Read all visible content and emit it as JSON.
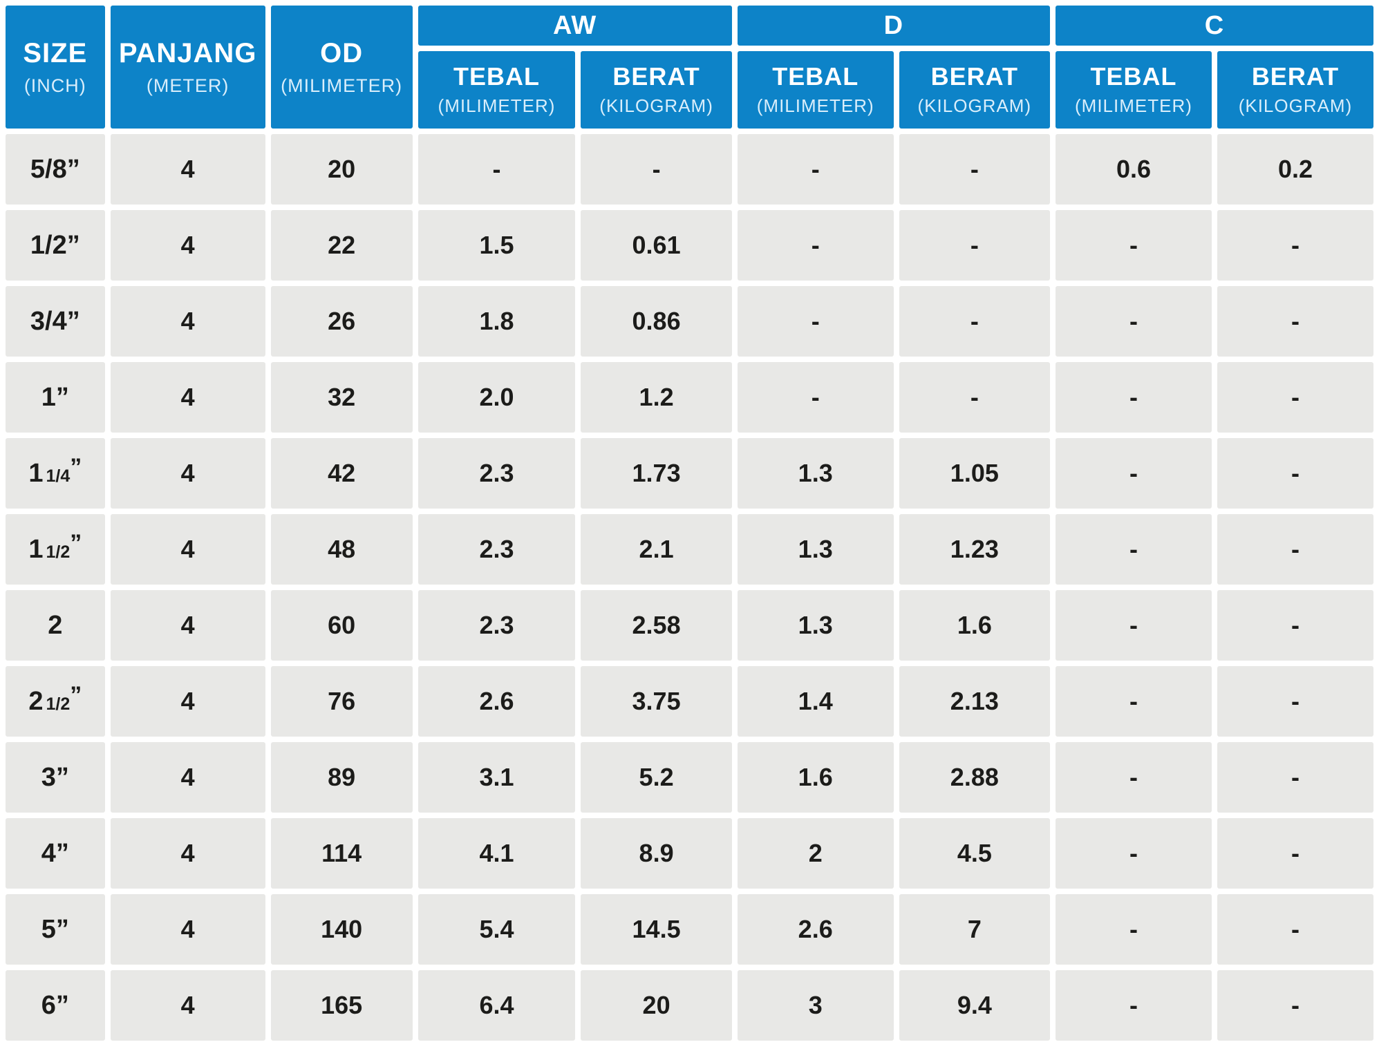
{
  "colors": {
    "header_bg": "#0d83c8",
    "cell_bg": "#e8e8e6",
    "header_text": "#ffffff",
    "header_subtext": "#d9eefb",
    "cell_text": "#1c1c1a",
    "gap": "#ffffff"
  },
  "chart_data": {
    "type": "table",
    "empty_marker": "-",
    "header": {
      "size": {
        "label": "SIZE",
        "unit": "(INCH)"
      },
      "panjang": {
        "label": "PANJANG",
        "unit": "(METER)"
      },
      "od": {
        "label": "OD",
        "unit": "(MILIMETER)"
      },
      "groups": [
        {
          "label": "AW",
          "cols": [
            {
              "label": "TEBAL",
              "unit": "(MILIMETER)"
            },
            {
              "label": "BERAT",
              "unit": "(KILOGRAM)"
            }
          ]
        },
        {
          "label": "D",
          "cols": [
            {
              "label": "TEBAL",
              "unit": "(MILIMETER)"
            },
            {
              "label": "BERAT",
              "unit": "(KILOGRAM)"
            }
          ]
        },
        {
          "label": "C",
          "cols": [
            {
              "label": "TEBAL",
              "unit": "(MILIMETER)"
            },
            {
              "label": "BERAT",
              "unit": "(KILOGRAM)"
            }
          ]
        }
      ]
    },
    "rows": [
      {
        "size": "5/8”",
        "panjang": "4",
        "od": "20",
        "aw_tebal": "-",
        "aw_berat": "-",
        "d_tebal": "-",
        "d_berat": "-",
        "c_tebal": "0.6",
        "c_berat": "0.2"
      },
      {
        "size": "1/2”",
        "panjang": "4",
        "od": "22",
        "aw_tebal": "1.5",
        "aw_berat": "0.61",
        "d_tebal": "-",
        "d_berat": "-",
        "c_tebal": "-",
        "c_berat": "-"
      },
      {
        "size": "3/4”",
        "panjang": "4",
        "od": "26",
        "aw_tebal": "1.8",
        "aw_berat": "0.86",
        "d_tebal": "-",
        "d_berat": "-",
        "c_tebal": "-",
        "c_berat": "-"
      },
      {
        "size": "1”",
        "panjang": "4",
        "od": "32",
        "aw_tebal": "2.0",
        "aw_berat": "1.2",
        "d_tebal": "-",
        "d_berat": "-",
        "c_tebal": "-",
        "c_berat": "-"
      },
      {
        "size": "1 1/4”",
        "panjang": "4",
        "od": "42",
        "aw_tebal": "2.3",
        "aw_berat": "1.73",
        "d_tebal": "1.3",
        "d_berat": "1.05",
        "c_tebal": "-",
        "c_berat": "-"
      },
      {
        "size": "1 1/2”",
        "panjang": "4",
        "od": "48",
        "aw_tebal": "2.3",
        "aw_berat": "2.1",
        "d_tebal": "1.3",
        "d_berat": "1.23",
        "c_tebal": "-",
        "c_berat": "-"
      },
      {
        "size": "2",
        "panjang": "4",
        "od": "60",
        "aw_tebal": "2.3",
        "aw_berat": "2.58",
        "d_tebal": "1.3",
        "d_berat": "1.6",
        "c_tebal": "-",
        "c_berat": "-"
      },
      {
        "size": "2 1/2”",
        "panjang": "4",
        "od": "76",
        "aw_tebal": "2.6",
        "aw_berat": "3.75",
        "d_tebal": "1.4",
        "d_berat": "2.13",
        "c_tebal": "-",
        "c_berat": "-"
      },
      {
        "size": "3”",
        "panjang": "4",
        "od": "89",
        "aw_tebal": "3.1",
        "aw_berat": "5.2",
        "d_tebal": "1.6",
        "d_berat": "2.88",
        "c_tebal": "-",
        "c_berat": "-"
      },
      {
        "size": "4”",
        "panjang": "4",
        "od": "114",
        "aw_tebal": "4.1",
        "aw_berat": "8.9",
        "d_tebal": "2",
        "d_berat": "4.5",
        "c_tebal": "-",
        "c_berat": "-"
      },
      {
        "size": "5”",
        "panjang": "4",
        "od": "140",
        "aw_tebal": "5.4",
        "aw_berat": "14.5",
        "d_tebal": "2.6",
        "d_berat": "7",
        "c_tebal": "-",
        "c_berat": "-"
      },
      {
        "size": "6”",
        "panjang": "4",
        "od": "165",
        "aw_tebal": "6.4",
        "aw_berat": "20",
        "d_tebal": "3",
        "d_berat": "9.4",
        "c_tebal": "-",
        "c_berat": "-"
      }
    ]
  }
}
